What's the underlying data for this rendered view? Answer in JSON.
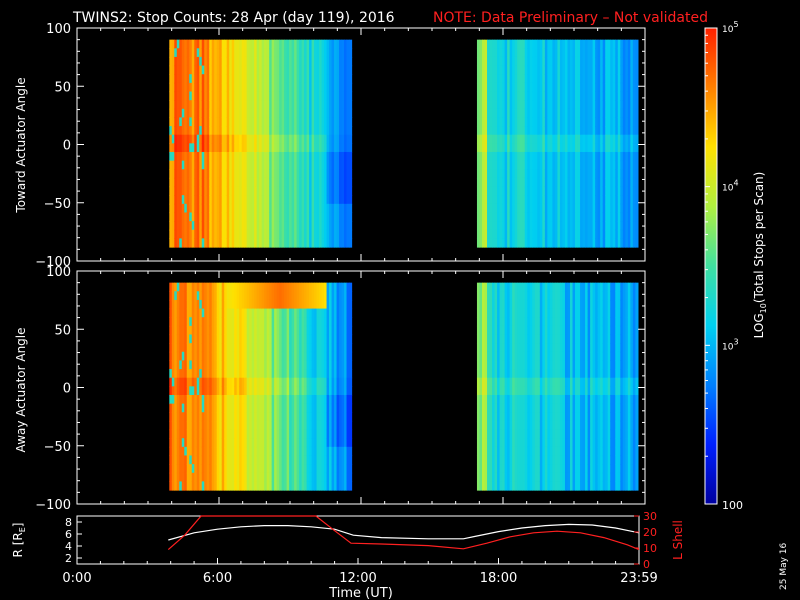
{
  "title": {
    "main": "TWINS2: Stop Counts: 28 Apr (day 119), 2016",
    "note": "NOTE: Data Preliminary – Not validated",
    "note_color": "#ff2020"
  },
  "date_stamp": "25 May 16",
  "colorbar": {
    "label": "LOG10(Total Stops per Scan)",
    "label_prefix": "LOG",
    "label_sub": "10",
    "label_suffix": "(Total Stops per Scan)",
    "scale": "log",
    "range": [
      100,
      100000
    ],
    "ticks": [
      {
        "base": "10",
        "exp": "5"
      },
      {
        "base": "10",
        "exp": "4"
      },
      {
        "base": "10",
        "exp": "3"
      }
    ],
    "tick_bottom": "100",
    "palette": [
      "#0000a0",
      "#0020ff",
      "#0080ff",
      "#00d0f0",
      "#40e0a0",
      "#b0f040",
      "#ffe000",
      "#ff8000",
      "#ff2000"
    ]
  },
  "x_axis": {
    "label": "Time (UT)",
    "ticks": [
      "0:00",
      "6:00",
      "12:00",
      "18:00",
      "23:59"
    ]
  },
  "chart_data": [
    {
      "type": "heatmap",
      "name": "toward",
      "ylabel": "Toward Actuator Angle",
      "yticks": [
        "100",
        "50",
        "0",
        "−50",
        "−100"
      ],
      "ylim": [
        -100,
        100
      ],
      "xlim_hours": [
        0,
        24
      ],
      "angle_range": [
        -88,
        90
      ],
      "data_blocks_hours": [
        [
          3.9,
          11.6
        ],
        [
          16.9,
          23.7
        ]
      ]
    },
    {
      "type": "heatmap",
      "name": "away",
      "ylabel": "Away Actuator Angle",
      "yticks": [
        "100",
        "50",
        "0",
        "−50",
        "−100"
      ],
      "ylim": [
        -100,
        100
      ],
      "xlim_hours": [
        0,
        24
      ],
      "angle_range": [
        -88,
        90
      ],
      "data_blocks_hours": [
        [
          3.9,
          11.6
        ],
        [
          16.9,
          23.7
        ]
      ]
    },
    {
      "type": "line",
      "name": "orbit",
      "ylabel_left": "R [RE]",
      "ylabel_left_main": "R [R",
      "ylabel_left_sub": "E",
      "ylabel_left_end": "]",
      "ylabel_right": "L Shell",
      "right_color": "#ff2020",
      "yticks_left": [
        "8",
        "6",
        "4",
        "2"
      ],
      "yticks_right": [
        "30",
        "20",
        "10",
        "0"
      ],
      "ylim_left": [
        1,
        9
      ],
      "ylim_right": [
        0,
        30
      ],
      "series": [
        {
          "name": "R",
          "color": "#ffffff",
          "x": [
            3.9,
            5,
            6,
            7,
            8,
            9,
            10,
            11,
            11.8,
            13,
            15,
            16.5,
            17,
            18,
            19,
            20,
            21,
            22,
            23,
            24
          ],
          "y": [
            5.0,
            6.2,
            6.8,
            7.2,
            7.4,
            7.4,
            7.2,
            6.8,
            5.8,
            5.4,
            5.2,
            5.2,
            5.6,
            6.4,
            7.0,
            7.4,
            7.6,
            7.5,
            7.0,
            6.2
          ]
        },
        {
          "name": "L",
          "color": "#ff2020",
          "x": [
            3.9,
            4.6,
            5.3,
            10.2,
            10.9,
            11.7,
            13,
            15,
            16.5,
            17.5,
            18.5,
            19.5,
            20.5,
            21.5,
            22.5,
            23.5,
            24
          ],
          "y": [
            9,
            18,
            30,
            30,
            22,
            13,
            12.5,
            11.5,
            9.5,
            13,
            17,
            19.5,
            20.5,
            19.5,
            16.5,
            12,
            9
          ]
        }
      ]
    }
  ]
}
